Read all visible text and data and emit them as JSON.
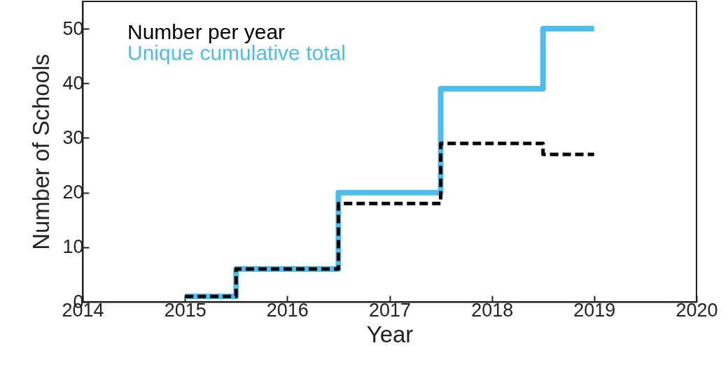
{
  "chart_data": {
    "type": "step",
    "xlabel": "Year",
    "ylabel": "Number of Schools",
    "x": [
      2015,
      2016,
      2017,
      2018,
      2019
    ],
    "series": [
      {
        "name": "Number per year",
        "color": "#000000",
        "line_style": "dashed",
        "values": [
          1,
          6,
          18,
          29,
          27
        ]
      },
      {
        "name": "Unique cumulative total",
        "color": "#4dbeeb",
        "line_style": "solid",
        "values": [
          1,
          6,
          20,
          39,
          50
        ]
      }
    ],
    "xlim": [
      2014,
      2020
    ],
    "xticks": [
      2014,
      2015,
      2016,
      2017,
      2018,
      2019,
      2020
    ],
    "ylim": [
      0,
      55
    ],
    "yticks": [
      0,
      10,
      20,
      30,
      40,
      50
    ],
    "grid": false,
    "legend": "top left"
  }
}
